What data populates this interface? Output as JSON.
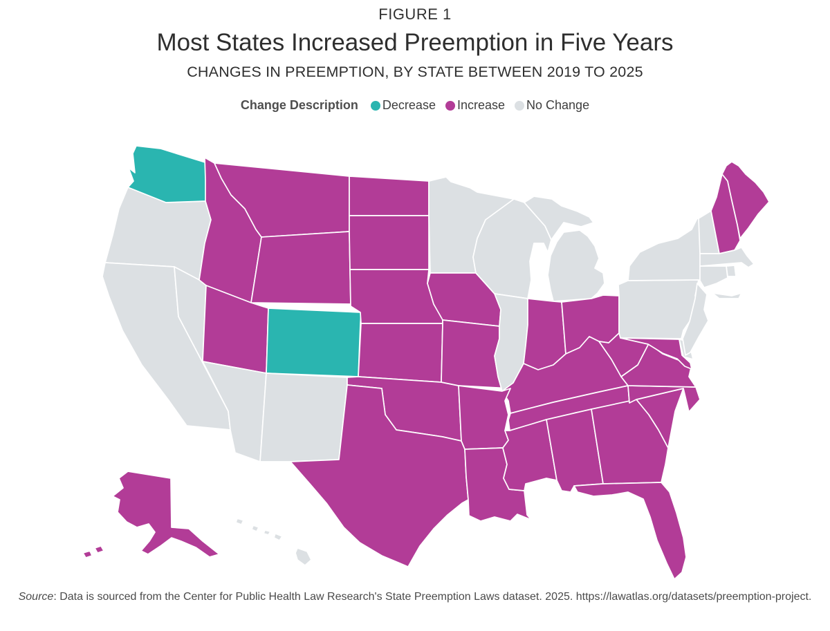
{
  "figure": {
    "label": "FIGURE 1",
    "title": "Most States Increased Preemption in Five Years",
    "subtitle": "CHANGES IN PREEMPTION, BY STATE BETWEEN 2019 TO 2025"
  },
  "legend": {
    "title": "Change Description",
    "items": [
      {
        "label": "Decrease",
        "color": "#2AB5B0"
      },
      {
        "label": "Increase",
        "color": "#B23C97"
      },
      {
        "label": "No Change",
        "color": "#DCE0E3"
      }
    ]
  },
  "source": {
    "prefix": "Source",
    "text": ": Data is sourced from the Center for Public Health Law Research's State Preemption Laws dataset. 2025. https://lawatlas.org/datasets/preemption-project."
  },
  "chart_data": {
    "type": "choropleth",
    "title": "Most States Increased Preemption in Five Years",
    "subtitle": "CHANGES IN PREEMPTION, BY STATE BETWEEN 2019 TO 2025",
    "legend_position": "top",
    "categories": [
      "Decrease",
      "Increase",
      "No Change"
    ],
    "category_colors": {
      "Decrease": "#2AB5B0",
      "Increase": "#B23C97",
      "No Change": "#DCE0E3"
    },
    "states": {
      "WA": "Decrease",
      "OR": "No Change",
      "CA": "No Change",
      "NV": "No Change",
      "ID": "Increase",
      "MT": "Increase",
      "WY": "Increase",
      "UT": "Increase",
      "CO": "Decrease",
      "AZ": "No Change",
      "NM": "No Change",
      "ND": "Increase",
      "SD": "Increase",
      "NE": "Increase",
      "KS": "Increase",
      "OK": "Increase",
      "TX": "Increase",
      "MN": "No Change",
      "IA": "Increase",
      "MO": "Increase",
      "AR": "Increase",
      "LA": "Increase",
      "WI": "No Change",
      "IL": "No Change",
      "MI": "No Change",
      "IN": "Increase",
      "OH": "Increase",
      "KY": "Increase",
      "TN": "Increase",
      "MS": "Increase",
      "AL": "Increase",
      "GA": "Increase",
      "FL": "Increase",
      "SC": "Increase",
      "NC": "Increase",
      "VA": "Increase",
      "WV": "Increase",
      "MD": "Increase",
      "DE": "No Change",
      "PA": "No Change",
      "NJ": "No Change",
      "NY": "No Change",
      "CT": "No Change",
      "RI": "No Change",
      "MA": "No Change",
      "VT": "No Change",
      "NH": "Increase",
      "ME": "Increase",
      "AK": "Increase",
      "HI": "No Change"
    }
  }
}
